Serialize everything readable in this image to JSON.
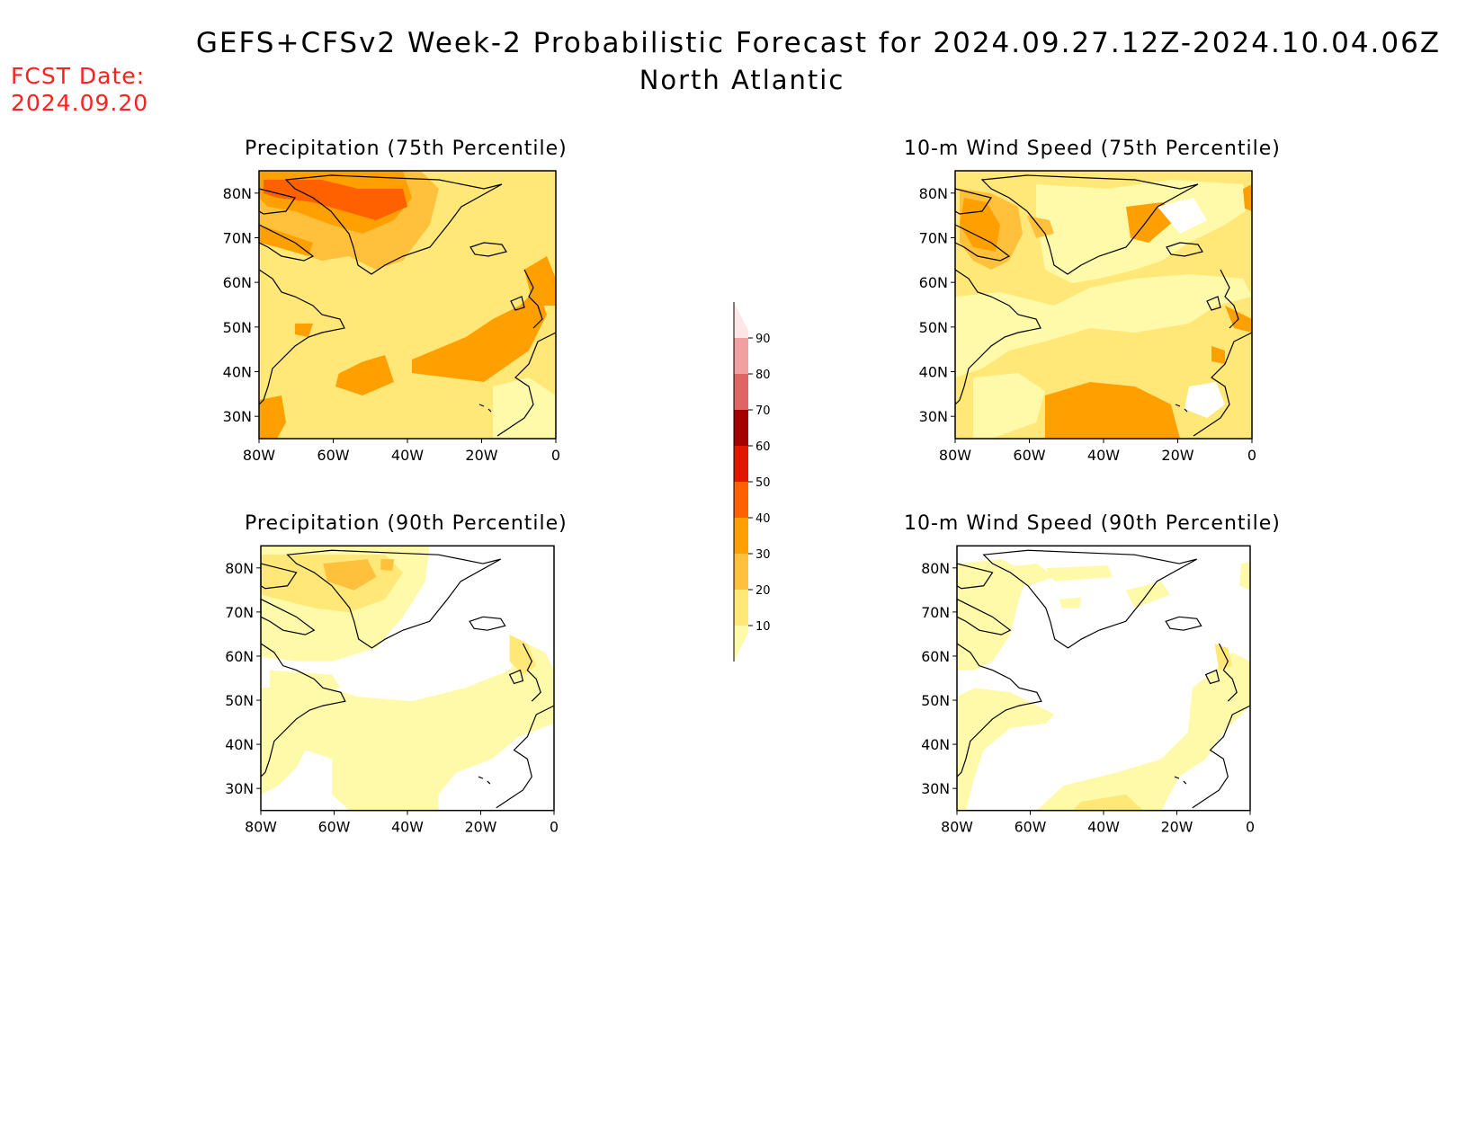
{
  "header": {
    "title": "GEFS+CFSv2 Week-2 Probabilistic Forecast for 2024.09.27.12Z-2024.10.04.06Z",
    "region": "North Atlantic",
    "fcst_label": "FCST Date:",
    "fcst_date": "2024.09.20"
  },
  "axes": {
    "lon_labels": [
      "80W",
      "60W",
      "40W",
      "20W",
      "0"
    ],
    "lat_labels": [
      "80N",
      "70N",
      "60N",
      "50N",
      "40N",
      "30N"
    ],
    "lon_range": [
      -80,
      0
    ],
    "lat_range": [
      25,
      85
    ]
  },
  "colorbar": {
    "levels": [
      10,
      20,
      30,
      40,
      50,
      60,
      70,
      80,
      90
    ],
    "labels": [
      "90",
      "80",
      "70",
      "60",
      "50",
      "40",
      "30",
      "20",
      "10"
    ],
    "colors": [
      "#fffaaa",
      "#ffe878",
      "#ffc03c",
      "#ffa000",
      "#ff6000",
      "#e11800",
      "#a50000",
      "#e06464",
      "#f0a0a0",
      "#ffe6e6"
    ]
  },
  "panels": [
    {
      "id": "precip-75",
      "title": "Precipitation (75th Percentile)"
    },
    {
      "id": "wind-75",
      "title": "10-m Wind Speed (75th Percentile)"
    },
    {
      "id": "precip-90",
      "title": "Precipitation (90th Percentile)"
    },
    {
      "id": "wind-90",
      "title": "10-m Wind Speed (90th Percentile)"
    }
  ]
}
